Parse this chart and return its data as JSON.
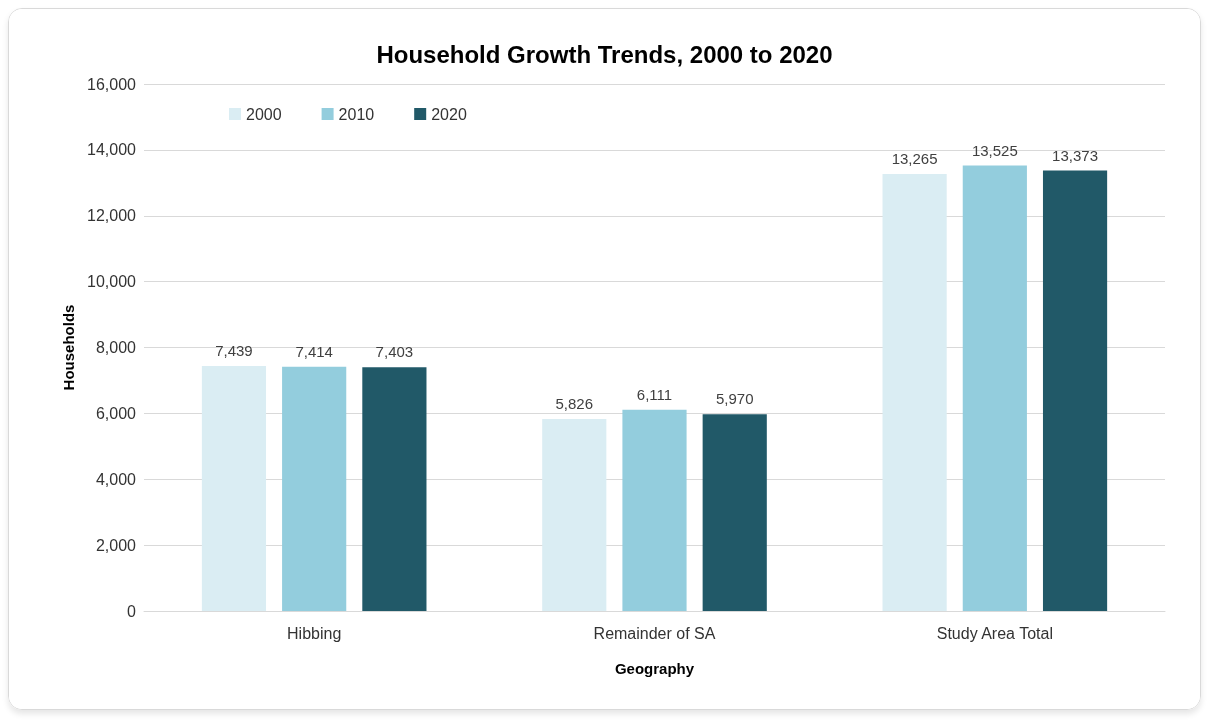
{
  "chart_data": {
    "type": "bar",
    "title": "Household Growth Trends, 2000 to 2020",
    "xlabel": "Geography",
    "ylabel": "Households",
    "categories": [
      "Hibbing",
      "Remainder of SA",
      "Study Area Total"
    ],
    "series": [
      {
        "name": "2000",
        "color": "#daedf3",
        "values": [
          7439,
          5826,
          13265
        ],
        "value_labels": [
          "7,439",
          "5,826",
          "13,265"
        ]
      },
      {
        "name": "2010",
        "color": "#93cddd",
        "values": [
          7414,
          6111,
          13525
        ],
        "value_labels": [
          "7,414",
          "6,111",
          "13,525"
        ]
      },
      {
        "name": "2020",
        "color": "#215968",
        "values": [
          7403,
          5970,
          13373
        ],
        "value_labels": [
          "7,403",
          "5,970",
          "13,373"
        ]
      }
    ],
    "ylim": [
      0,
      16000
    ],
    "yticks": [
      0,
      {
        "value": 2000,
        "label": "2,000"
      },
      {
        "value": 4000,
        "label": "4,000"
      },
      {
        "value": 6000,
        "label": "6,000"
      },
      {
        "value": 8000,
        "label": "8,000"
      },
      {
        "value": 10000,
        "label": "10,000"
      },
      {
        "value": 12000,
        "label": "12,000"
      },
      {
        "value": 14000,
        "label": "14,000"
      },
      {
        "value": 16000,
        "label": "16,000"
      }
    ],
    "grid": "y",
    "legend": "top left"
  }
}
